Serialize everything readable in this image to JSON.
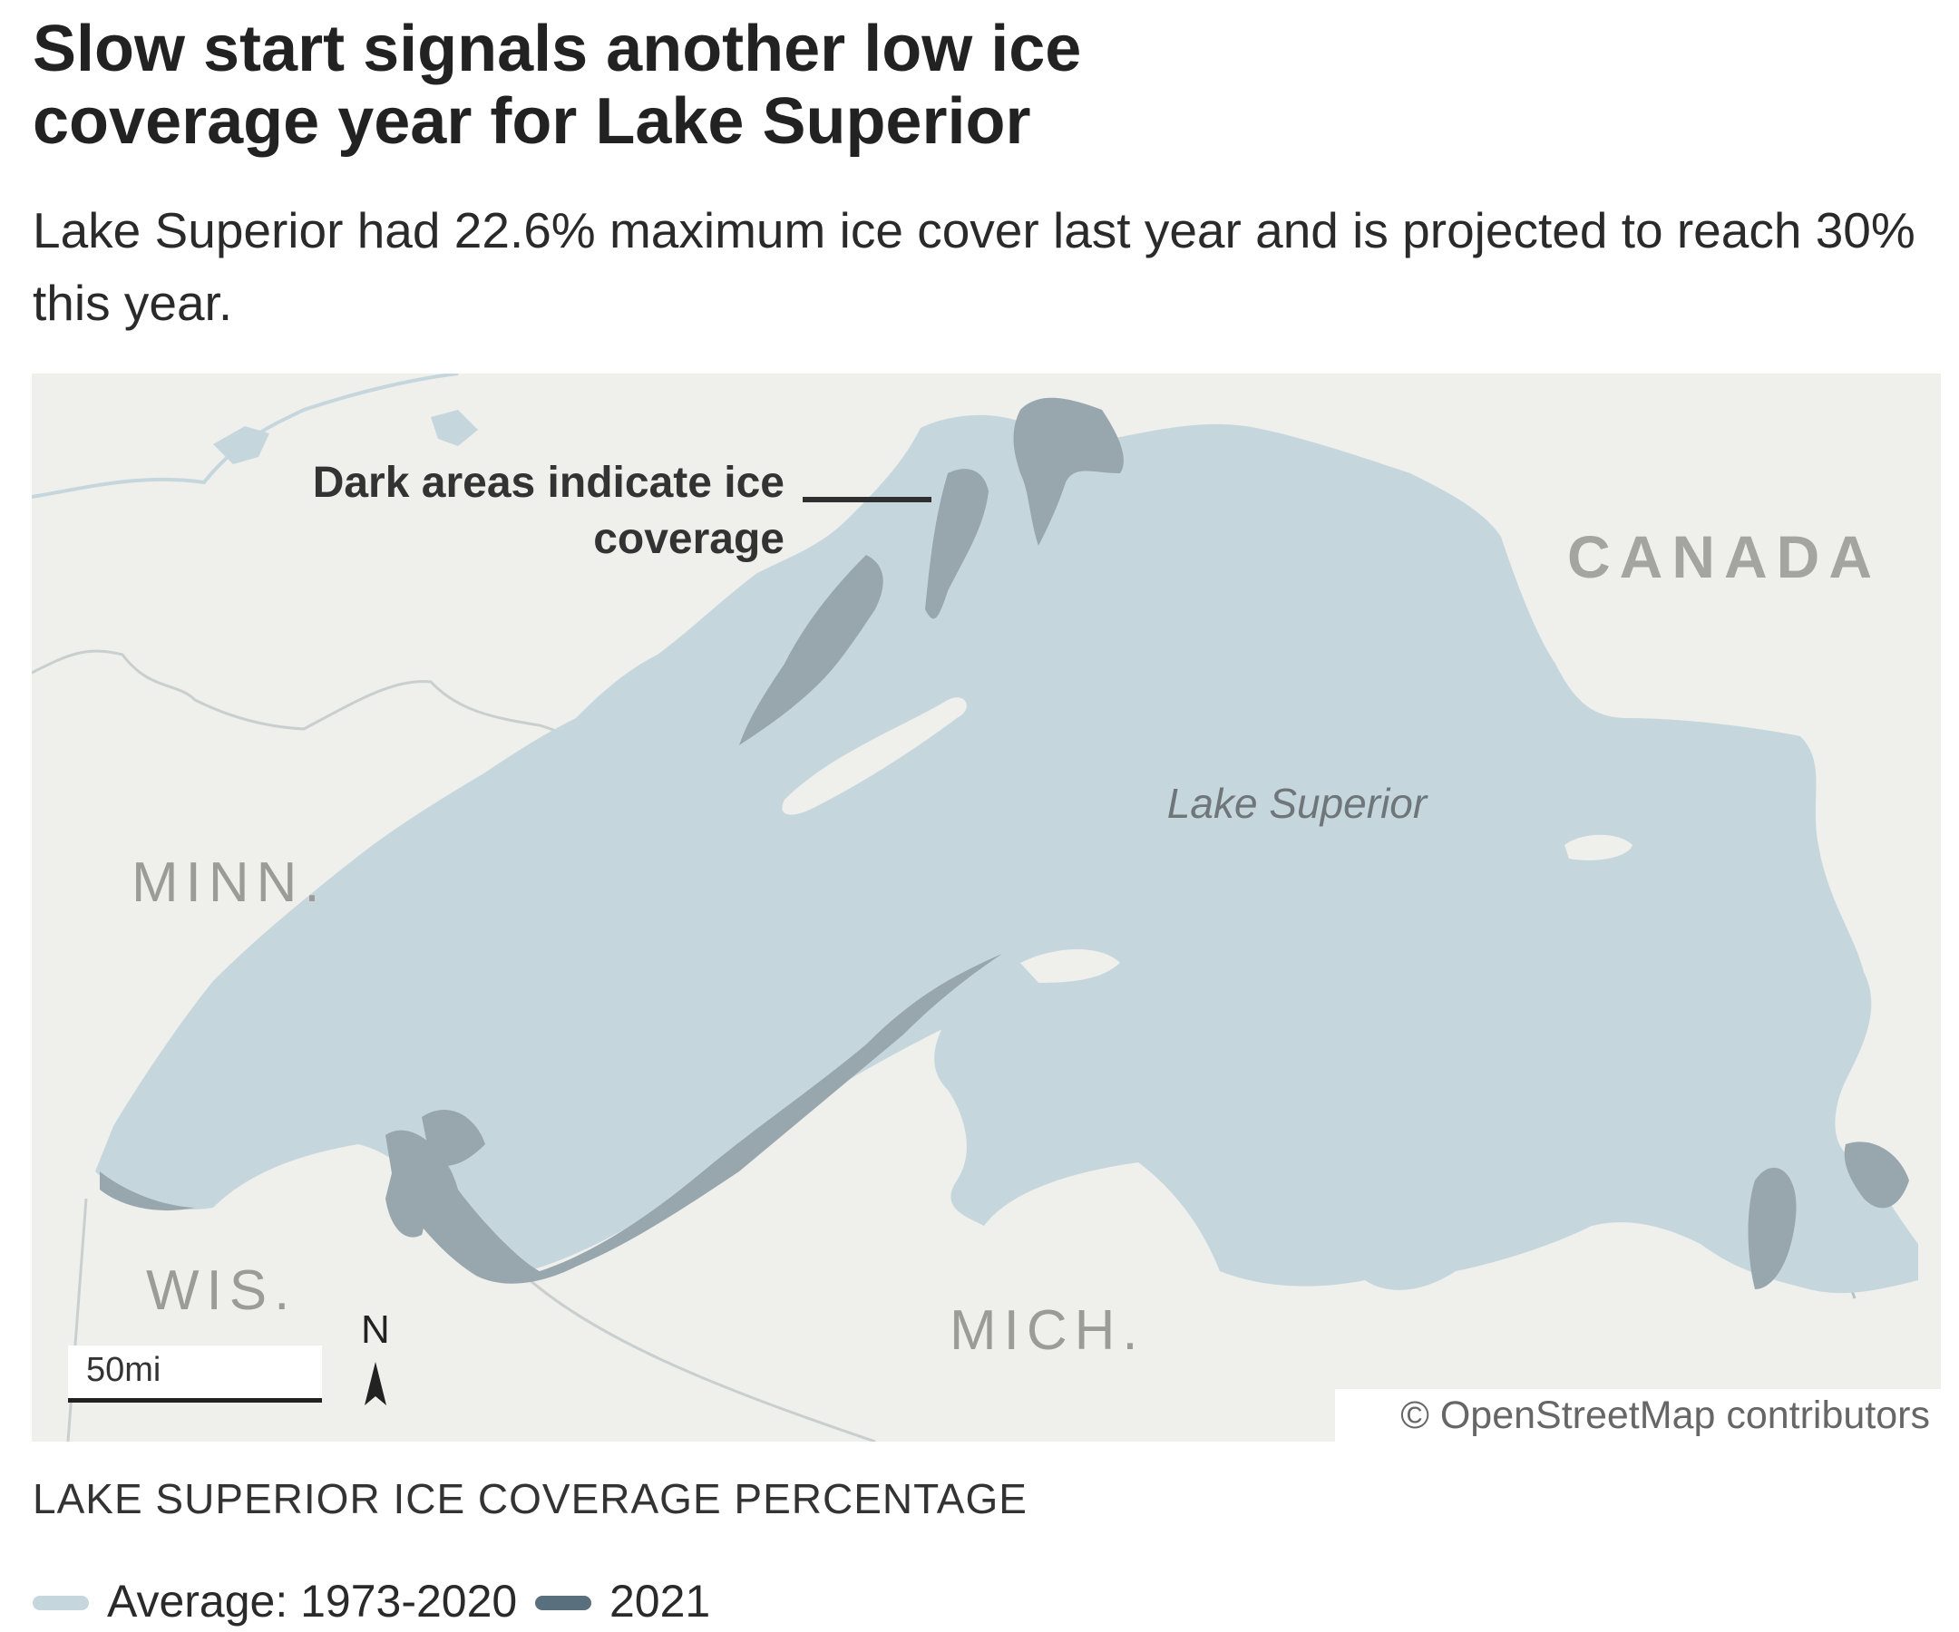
{
  "title": "Slow start signals another low ice coverage year for Lake Superior",
  "subtitle": "Lake Superior had 22.6% maximum ice cover last year and is projected to reach 30% this year.",
  "map": {
    "labels": {
      "canada": "CANADA",
      "minn": "MINN.",
      "wis": "WIS.",
      "mich": "MICH.",
      "lake": "Lake Superior"
    },
    "annotation": "Dark areas indicate ice coverage",
    "scale": "50mi",
    "north": "N",
    "credit": "© OpenStreetMap contributors",
    "colors": {
      "land": "#efefec",
      "water": "#c5d7dd",
      "ice_2021": "#98a7ad",
      "borders": "#c9cfcf"
    }
  },
  "legend": {
    "title": "LAKE SUPERIOR ICE COVERAGE PERCENTAGE",
    "items": [
      {
        "label": "Average: 1973-2020",
        "color": "#c5d7dd"
      },
      {
        "label": "2021",
        "color": "#5a6f7d"
      }
    ]
  }
}
